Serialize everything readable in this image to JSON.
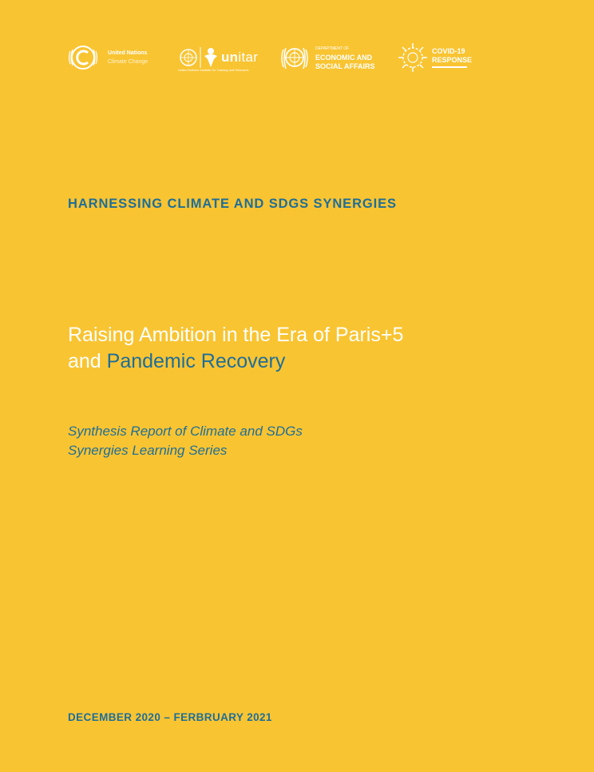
{
  "logos": {
    "unfccc": {
      "line1": "United Nations",
      "line2": "Climate Change"
    },
    "unitar": {
      "name_bold": "un",
      "name_rest": "itar",
      "tagline": "United Nations Institute for Training and Research"
    },
    "desa": {
      "line1": "DEPARTMENT OF",
      "line2": "ECONOMIC AND",
      "line3": "SOCIAL AFFAIRS"
    },
    "covid": {
      "line1": "COVID-19",
      "line2": "RESPONSE"
    }
  },
  "series_title": "HARNESSING CLIMATE AND SDGS SYNERGIES",
  "title": {
    "line1": "Raising Ambition in the Era of Paris+5",
    "line2_prefix": "and ",
    "line2_highlight": "Pandemic Recovery"
  },
  "subtitle": {
    "line1": "Synthesis Report of Climate and SDGs",
    "line2": "Synergies Learning Series"
  },
  "date_range": "DECEMBER 2020 – FERBRUARY 2021",
  "colors": {
    "background": "#f9c432",
    "accent": "#1f6e97",
    "title": "#ffffff"
  }
}
